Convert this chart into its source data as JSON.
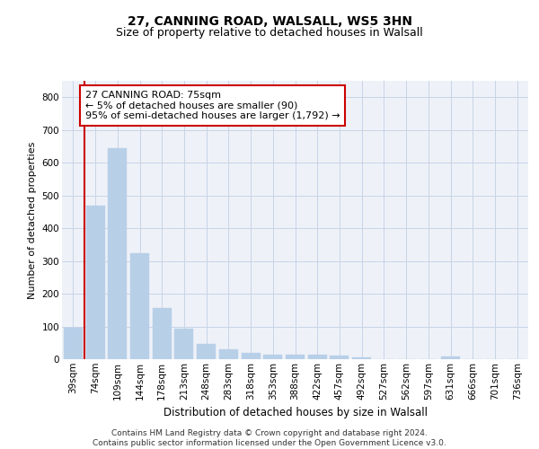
{
  "title1": "27, CANNING ROAD, WALSALL, WS5 3HN",
  "title2": "Size of property relative to detached houses in Walsall",
  "xlabel": "Distribution of detached houses by size in Walsall",
  "ylabel": "Number of detached properties",
  "categories": [
    "39sqm",
    "74sqm",
    "109sqm",
    "144sqm",
    "178sqm",
    "213sqm",
    "248sqm",
    "283sqm",
    "318sqm",
    "353sqm",
    "388sqm",
    "422sqm",
    "457sqm",
    "492sqm",
    "527sqm",
    "562sqm",
    "597sqm",
    "631sqm",
    "666sqm",
    "701sqm",
    "736sqm"
  ],
  "values": [
    95,
    470,
    645,
    323,
    157,
    92,
    46,
    30,
    20,
    15,
    15,
    13,
    10,
    6,
    0,
    0,
    0,
    8,
    0,
    0,
    0
  ],
  "bar_color": "#b8cfe8",
  "bar_edgecolor": "#b8cfe8",
  "vline_color": "#cc0000",
  "annotation_text": "27 CANNING ROAD: 75sqm\n← 5% of detached houses are smaller (90)\n95% of semi-detached houses are larger (1,792) →",
  "annotation_box_edgecolor": "#cc0000",
  "ylim": [
    0,
    850
  ],
  "yticks": [
    0,
    100,
    200,
    300,
    400,
    500,
    600,
    700,
    800
  ],
  "grid_color": "#c8d4e8",
  "background_color": "#eef2f8",
  "footer": "Contains HM Land Registry data © Crown copyright and database right 2024.\nContains public sector information licensed under the Open Government Licence v3.0.",
  "title1_fontsize": 10,
  "title2_fontsize": 9,
  "xlabel_fontsize": 8.5,
  "ylabel_fontsize": 8,
  "tick_fontsize": 7.5,
  "annot_fontsize": 8,
  "footer_fontsize": 6.5
}
